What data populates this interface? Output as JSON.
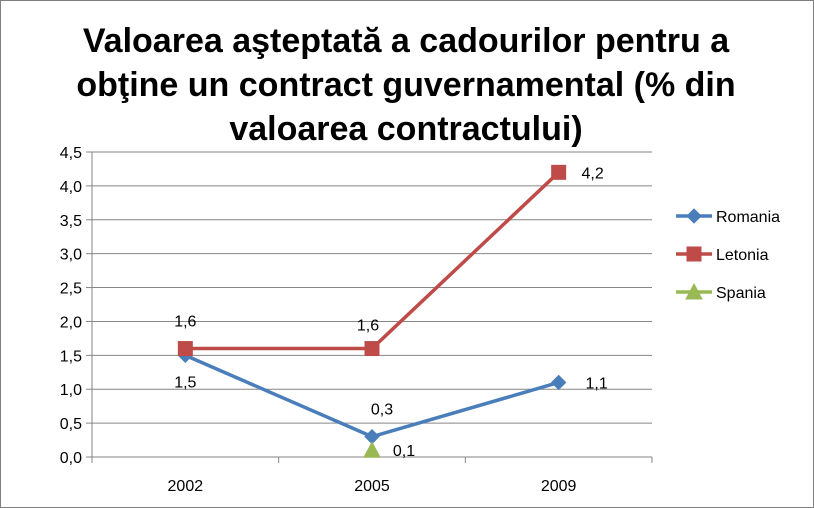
{
  "chart_data": {
    "type": "line",
    "title_lines": [
      "Valoarea aşteptată a cadourilor pentru a",
      "obţine un contract guvernamental (% din",
      "valoarea contractului)"
    ],
    "categories": [
      "2002",
      "2005",
      "2009"
    ],
    "ylim": [
      0,
      4.5
    ],
    "y_ticks": [
      "0,0",
      "0,5",
      "1,0",
      "1,5",
      "2,0",
      "2,5",
      "3,0",
      "3,5",
      "4,0",
      "4,5"
    ],
    "grid": true,
    "legend_position": "right",
    "series": [
      {
        "name": "Romania",
        "color": "#4a7ebb",
        "marker": "diamond",
        "values": [
          1.5,
          0.3,
          1.1
        ],
        "labels": [
          "1,5",
          "0,3",
          "1,1"
        ]
      },
      {
        "name": "Letonia",
        "color": "#be4b48",
        "marker": "square",
        "values": [
          1.6,
          1.6,
          4.2
        ],
        "labels": [
          "1,6",
          "1,6",
          "4,2"
        ]
      },
      {
        "name": "Spania",
        "color": "#98b954",
        "marker": "triangle",
        "values": [
          null,
          0.1,
          null
        ],
        "labels": [
          null,
          "0,1",
          null
        ]
      }
    ]
  }
}
